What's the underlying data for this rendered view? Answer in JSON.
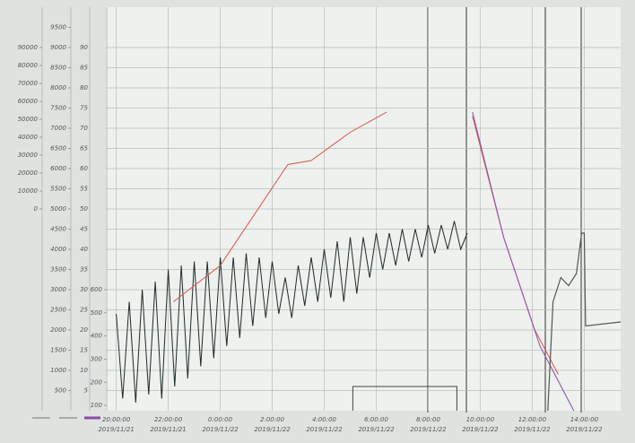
{
  "chart_data": {
    "type": "line",
    "xlim": [
      -0.4,
      19.4
    ],
    "xticks": [
      {
        "value": 0,
        "label": "20:00:00",
        "date": "2019/11/21"
      },
      {
        "value": 2,
        "label": "22:00:00",
        "date": "2019/11/21"
      },
      {
        "value": 4,
        "label": "0:00:00",
        "date": "2019/11/22"
      },
      {
        "value": 6,
        "label": "2:00:00",
        "date": "2019/11/22"
      },
      {
        "value": 8,
        "label": "4:00:00",
        "date": "2019/11/22"
      },
      {
        "value": 10,
        "label": "6:00:00",
        "date": "2019/11/22"
      },
      {
        "value": 12,
        "label": "8:00:00",
        "date": "2019/11/22"
      },
      {
        "value": 14,
        "label": "10:00:00",
        "date": "2019/11/22"
      },
      {
        "value": 16,
        "label": "12:00:00",
        "date": "2019/11/22"
      },
      {
        "value": 18,
        "label": "14:00:00",
        "date": "2019/11/22"
      }
    ],
    "ylim": [
      0,
      100
    ],
    "yticks": [
      5,
      10,
      15,
      20,
      25,
      30,
      35,
      40,
      45,
      50,
      55,
      60,
      65,
      70,
      75,
      80,
      85,
      90
    ],
    "grid": true,
    "extra_axes": [
      {
        "ylim": [
          -112500,
          112500
        ],
        "yticks": [
          0,
          10000,
          20000,
          30000,
          40000,
          50000,
          60000,
          70000,
          80000,
          90000
        ]
      },
      {
        "ylim": [
          0,
          10000
        ],
        "yticks": [
          500,
          1000,
          1500,
          2000,
          2500,
          3000,
          3500,
          4000,
          4500,
          5000,
          5500,
          6000,
          6500,
          7000,
          7500,
          8000,
          8500,
          9000,
          9500
        ]
      },
      {
        "ylim": [
          77,
          1821
        ],
        "yticks": [
          100,
          200,
          300,
          400,
          500,
          600
        ]
      }
    ],
    "series": [
      {
        "color": "#1f2a2a",
        "width": 1,
        "x": [
          0,
          0.25,
          0.5,
          0.75,
          1,
          1.25,
          1.5,
          1.75,
          2,
          2.25,
          2.5,
          2.75,
          3,
          3.25,
          3.5,
          3.75,
          4,
          4.25,
          4.5,
          4.75,
          5,
          5.25,
          5.5,
          5.75,
          6,
          6.25,
          6.5,
          6.75,
          7,
          7.25,
          7.5,
          7.75,
          8,
          8.25,
          8.5,
          8.75,
          9,
          9.25,
          9.5,
          9.75,
          10,
          10.25,
          10.5,
          10.75,
          11,
          11.25,
          11.5,
          11.75,
          12,
          12.25,
          12.5,
          12.75,
          13,
          13.25,
          13.5
        ],
        "values": [
          24,
          3,
          27,
          2,
          30,
          4,
          32,
          3,
          35,
          6,
          36,
          8,
          37,
          11,
          37,
          13,
          38,
          16,
          38,
          18,
          39,
          21,
          38,
          23,
          37,
          24,
          33,
          23,
          36,
          26,
          38,
          27,
          40,
          28,
          42,
          27,
          43,
          29,
          43,
          33,
          44,
          35,
          44,
          36,
          45,
          37,
          45,
          38,
          46,
          39,
          46,
          40,
          47,
          40,
          44
        ]
      },
      {
        "color": "#d9534f",
        "width": 1,
        "x": [
          2.2,
          4,
          6.6,
          7.5,
          9,
          10.4,
          12,
          13.7,
          14.9,
          16.1,
          17
        ],
        "values": [
          27,
          36,
          61,
          62,
          69,
          74,
          null,
          73,
          43,
          20,
          9
        ]
      },
      {
        "color": "#8a4fa8",
        "width": 1,
        "x": [
          13.7,
          14.9,
          16.3,
          17.6
        ],
        "values": [
          74,
          43,
          16,
          0
        ]
      },
      {
        "color": "#555",
        "width": 1.2,
        "x": [
          16.6,
          16.8,
          17.1,
          17.4,
          17.7,
          17.9,
          18.0,
          18.05,
          19.4
        ],
        "values": [
          0,
          27,
          33,
          31,
          34,
          44,
          44,
          21,
          22
        ]
      },
      {
        "color": "#444",
        "width": 1,
        "x": [
          9.1,
          9.1,
          13.1,
          13.1
        ],
        "values": [
          0,
          6,
          6,
          0
        ]
      }
    ]
  }
}
